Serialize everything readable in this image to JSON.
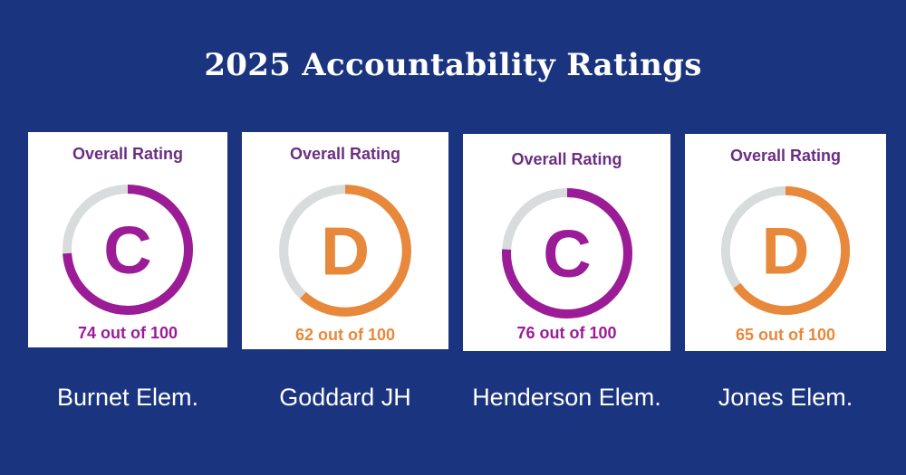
{
  "title": "2025 Accountability Ratings",
  "colors": {
    "background": "#1b3480",
    "purple": "#9b1c96",
    "orange": "#e8883a",
    "track": "#d9dcdc",
    "heading": "#6b2e82"
  },
  "cards": [
    {
      "heading": "Overall Rating",
      "grade": "C",
      "score_text": "74 out of 100",
      "score": 74,
      "color": "#9b1c96",
      "school": "Burnet Elem."
    },
    {
      "heading": "Overall Rating",
      "grade": "D",
      "score_text": "62 out of 100",
      "score": 62,
      "color": "#e8883a",
      "school": "Goddard JH"
    },
    {
      "heading": "Overall Rating",
      "grade": "C",
      "score_text": "76 out of 100",
      "score": 76,
      "color": "#9b1c96",
      "school": "Henderson Elem."
    },
    {
      "heading": "Overall Rating",
      "grade": "D",
      "score_text": "65 out of 100",
      "score": 65,
      "color": "#e8883a",
      "school": "Jones Elem."
    }
  ]
}
